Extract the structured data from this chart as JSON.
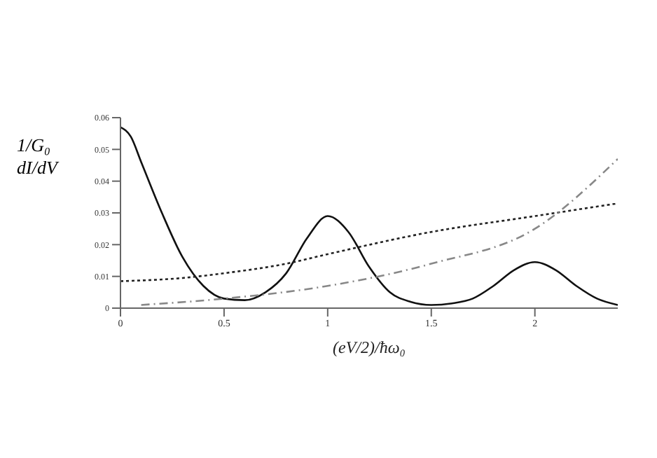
{
  "chart_data": {
    "type": "line",
    "xlabel": "(eV/2)/ħω₀",
    "ylabel": "1/G₀ dI/dV",
    "xlim": [
      0,
      2.4
    ],
    "ylim": [
      0,
      0.06
    ],
    "xticks": [
      0,
      0.5,
      1,
      1.5,
      2
    ],
    "yticks": [
      0,
      0.01,
      0.02,
      0.03,
      0.04,
      0.05,
      0.06
    ],
    "grid": false,
    "legend": false,
    "marker": "none",
    "series": [
      {
        "color": "#111111",
        "line_style": "solid",
        "x": [
          0,
          0.05,
          0.1,
          0.2,
          0.3,
          0.4,
          0.5,
          0.6,
          0.7,
          0.8,
          0.9,
          1.0,
          1.1,
          1.2,
          1.3,
          1.4,
          1.5,
          1.6,
          1.7,
          1.8,
          1.9,
          2.0,
          2.1,
          2.2,
          2.3,
          2.4
        ],
        "values": [
          0.057,
          0.054,
          0.046,
          0.03,
          0.016,
          0.007,
          0.003,
          0.0025,
          0.005,
          0.011,
          0.022,
          0.029,
          0.024,
          0.013,
          0.005,
          0.002,
          0.001,
          0.0015,
          0.003,
          0.007,
          0.012,
          0.0145,
          0.012,
          0.007,
          0.003,
          0.001
        ]
      },
      {
        "color": "#222222",
        "line_style": "dotted",
        "x": [
          0,
          0.3,
          0.5,
          0.8,
          1.0,
          1.5,
          2.0,
          2.4
        ],
        "values": [
          0.0085,
          0.0095,
          0.011,
          0.014,
          0.017,
          0.024,
          0.029,
          0.033
        ]
      },
      {
        "color": "#888888",
        "line_style": "dashed",
        "x": [
          0.1,
          0.5,
          1.0,
          1.5,
          2.0,
          2.4
        ],
        "values": [
          0.001,
          0.003,
          0.007,
          0.014,
          0.025,
          0.047
        ]
      }
    ]
  }
}
